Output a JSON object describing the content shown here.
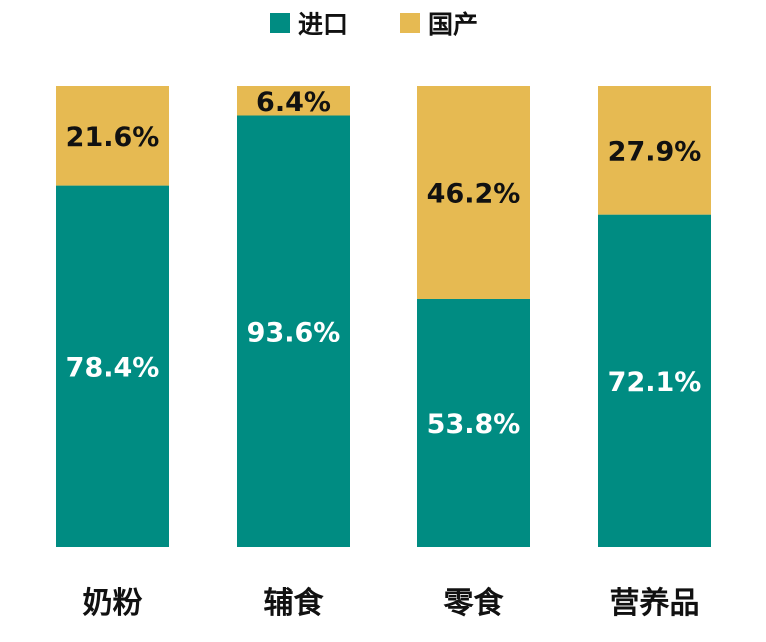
{
  "chart_data": {
    "type": "bar",
    "stacked": true,
    "percent": true,
    "legend_position": "top-center",
    "grid": false,
    "ylim": [
      0,
      100
    ],
    "categories": [
      "奶粉",
      "辅食",
      "零食",
      "营养品"
    ],
    "series": [
      {
        "name": "进口",
        "color": "#008C82",
        "values": [
          78.4,
          93.6,
          53.8,
          72.1
        ],
        "labels": [
          "78.4%",
          "93.6%",
          "53.8%",
          "72.1%"
        ],
        "label_color": "#ffffff"
      },
      {
        "name": "国产",
        "color": "#E6BA52",
        "values": [
          21.6,
          6.4,
          46.2,
          27.9
        ],
        "labels": [
          "21.6%",
          "6.4%",
          "46.2%",
          "27.9%"
        ],
        "label_color": "#111111"
      }
    ]
  }
}
